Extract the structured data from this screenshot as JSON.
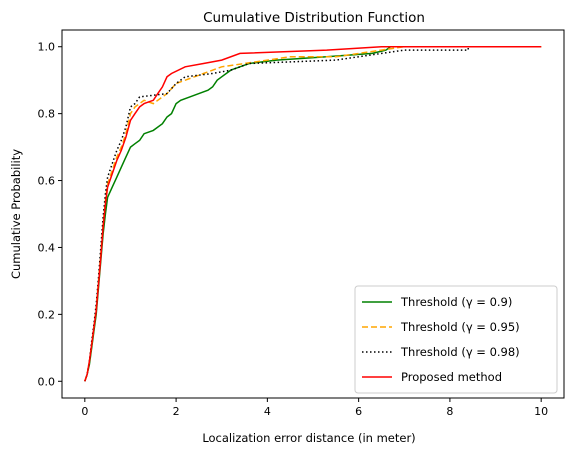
{
  "chart_data": {
    "type": "line",
    "title": "Cumulative Distribution Function",
    "xlabel": "Localization error distance (in meter)",
    "ylabel": "Cumulative Probability",
    "xlim": [
      -0.5,
      10.5
    ],
    "ylim": [
      -0.05,
      1.05
    ],
    "xticks": [
      0,
      2,
      4,
      6,
      8,
      10
    ],
    "yticks": [
      0.0,
      0.2,
      0.4,
      0.6,
      0.8,
      1.0
    ],
    "xtick_labels": [
      "0",
      "2",
      "4",
      "6",
      "8",
      "10"
    ],
    "ytick_labels": [
      "0.0",
      "0.2",
      "0.4",
      "0.6",
      "0.8",
      "1.0"
    ],
    "grid": false,
    "legend_position": "bottom-right",
    "series": [
      {
        "name": "Threshold (γ = 0.9)",
        "color": "#008000",
        "dash": "solid",
        "points": [
          [
            0,
            0
          ],
          [
            0.05,
            0.02
          ],
          [
            0.1,
            0.05
          ],
          [
            0.15,
            0.1
          ],
          [
            0.2,
            0.15
          ],
          [
            0.25,
            0.2
          ],
          [
            0.3,
            0.28
          ],
          [
            0.35,
            0.36
          ],
          [
            0.4,
            0.44
          ],
          [
            0.45,
            0.5
          ],
          [
            0.5,
            0.55
          ],
          [
            0.6,
            0.58
          ],
          [
            0.7,
            0.61
          ],
          [
            0.8,
            0.64
          ],
          [
            0.9,
            0.67
          ],
          [
            1.0,
            0.7
          ],
          [
            1.1,
            0.71
          ],
          [
            1.2,
            0.72
          ],
          [
            1.3,
            0.74
          ],
          [
            1.5,
            0.75
          ],
          [
            1.7,
            0.77
          ],
          [
            1.8,
            0.79
          ],
          [
            1.9,
            0.8
          ],
          [
            2.0,
            0.83
          ],
          [
            2.1,
            0.84
          ],
          [
            2.3,
            0.85
          ],
          [
            2.5,
            0.86
          ],
          [
            2.7,
            0.87
          ],
          [
            2.8,
            0.88
          ],
          [
            2.9,
            0.9
          ],
          [
            3.0,
            0.91
          ],
          [
            3.2,
            0.93
          ],
          [
            3.4,
            0.94
          ],
          [
            3.6,
            0.95
          ],
          [
            4.2,
            0.96
          ],
          [
            5.3,
            0.97
          ],
          [
            6.3,
            0.98
          ],
          [
            6.6,
            0.99
          ],
          [
            6.7,
            1.0
          ],
          [
            10,
            1.0
          ]
        ]
      },
      {
        "name": "Threshold (γ = 0.95)",
        "color": "#ffa500",
        "dash": "dashed",
        "points": [
          [
            0,
            0
          ],
          [
            0.05,
            0.02
          ],
          [
            0.1,
            0.06
          ],
          [
            0.15,
            0.11
          ],
          [
            0.2,
            0.16
          ],
          [
            0.25,
            0.22
          ],
          [
            0.3,
            0.3
          ],
          [
            0.35,
            0.38
          ],
          [
            0.4,
            0.47
          ],
          [
            0.45,
            0.54
          ],
          [
            0.5,
            0.59
          ],
          [
            0.6,
            0.63
          ],
          [
            0.7,
            0.67
          ],
          [
            0.8,
            0.7
          ],
          [
            0.9,
            0.74
          ],
          [
            1.0,
            0.8
          ],
          [
            1.1,
            0.82
          ],
          [
            1.3,
            0.84
          ],
          [
            1.5,
            0.83
          ],
          [
            1.8,
            0.86
          ],
          [
            2.0,
            0.89
          ],
          [
            2.2,
            0.9
          ],
          [
            2.6,
            0.92
          ],
          [
            3.0,
            0.94
          ],
          [
            3.5,
            0.95
          ],
          [
            4.0,
            0.96
          ],
          [
            4.5,
            0.97
          ],
          [
            5.5,
            0.97
          ],
          [
            6.5,
            0.99
          ],
          [
            7.0,
            1.0
          ],
          [
            10,
            1.0
          ]
        ]
      },
      {
        "name": "Threshold (γ = 0.98)",
        "color": "#000000",
        "dash": "dotted",
        "points": [
          [
            0,
            0
          ],
          [
            0.05,
            0.02
          ],
          [
            0.1,
            0.06
          ],
          [
            0.15,
            0.12
          ],
          [
            0.2,
            0.17
          ],
          [
            0.25,
            0.23
          ],
          [
            0.3,
            0.31
          ],
          [
            0.35,
            0.4
          ],
          [
            0.4,
            0.49
          ],
          [
            0.45,
            0.56
          ],
          [
            0.5,
            0.61
          ],
          [
            0.6,
            0.65
          ],
          [
            0.7,
            0.69
          ],
          [
            0.8,
            0.72
          ],
          [
            0.9,
            0.76
          ],
          [
            1.0,
            0.82
          ],
          [
            1.1,
            0.83
          ],
          [
            1.2,
            0.85
          ],
          [
            1.8,
            0.86
          ],
          [
            2.0,
            0.89
          ],
          [
            2.2,
            0.91
          ],
          [
            2.8,
            0.92
          ],
          [
            3.2,
            0.93
          ],
          [
            3.6,
            0.95
          ],
          [
            5.5,
            0.96
          ],
          [
            7.0,
            0.99
          ],
          [
            8.4,
            0.99
          ],
          [
            8.4,
            1.0
          ]
        ]
      },
      {
        "name": "Proposed method",
        "color": "#ff0000",
        "dash": "solid",
        "points": [
          [
            0,
            0
          ],
          [
            0.05,
            0.02
          ],
          [
            0.1,
            0.06
          ],
          [
            0.15,
            0.11
          ],
          [
            0.2,
            0.16
          ],
          [
            0.25,
            0.21
          ],
          [
            0.3,
            0.29
          ],
          [
            0.35,
            0.37
          ],
          [
            0.4,
            0.46
          ],
          [
            0.45,
            0.53
          ],
          [
            0.5,
            0.58
          ],
          [
            0.6,
            0.62
          ],
          [
            0.7,
            0.66
          ],
          [
            0.8,
            0.69
          ],
          [
            0.9,
            0.73
          ],
          [
            1.0,
            0.78
          ],
          [
            1.1,
            0.8
          ],
          [
            1.2,
            0.82
          ],
          [
            1.3,
            0.83
          ],
          [
            1.5,
            0.84
          ],
          [
            1.6,
            0.86
          ],
          [
            1.7,
            0.88
          ],
          [
            1.8,
            0.91
          ],
          [
            1.9,
            0.92
          ],
          [
            2.2,
            0.94
          ],
          [
            2.6,
            0.95
          ],
          [
            3.0,
            0.96
          ],
          [
            3.4,
            0.98
          ],
          [
            5.3,
            0.99
          ],
          [
            6.5,
            1.0
          ],
          [
            10,
            1.0
          ]
        ]
      }
    ]
  }
}
